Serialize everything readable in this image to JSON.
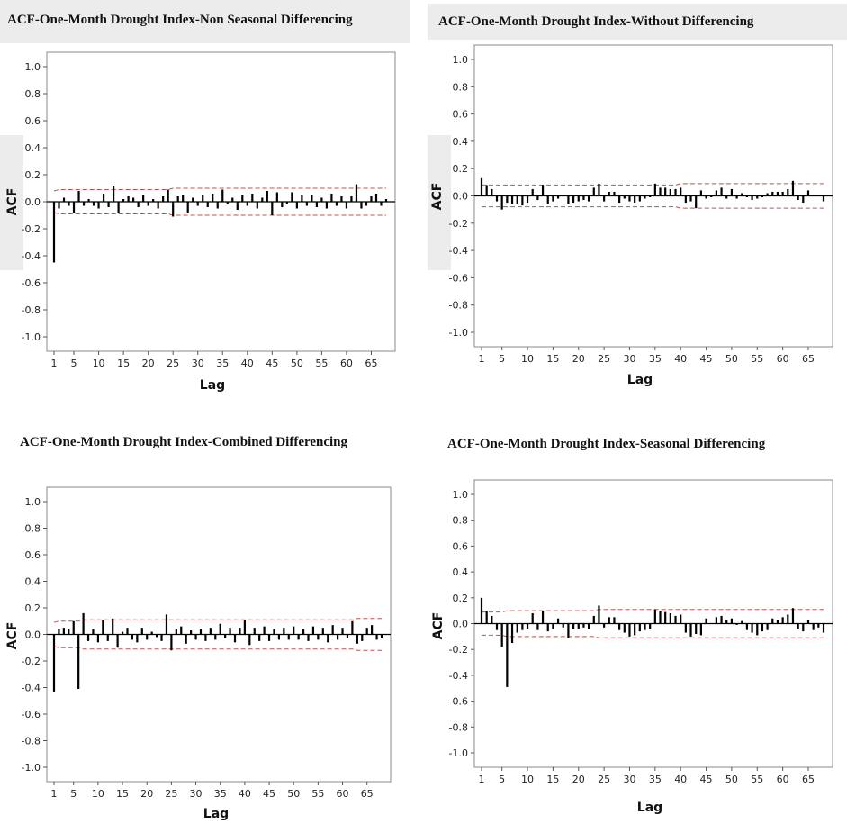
{
  "charts": [
    {
      "title": "ACF-One-Month Drought Index-Non Seasonal Differencing",
      "chart_data": {
        "type": "bar",
        "title": "ACF-One-Month Drought Index-Non Seasonal Differencing",
        "xlabel": "Lag",
        "ylabel": "ACF",
        "ylim": [
          -1.0,
          1.0
        ],
        "xlim": [
          1,
          68
        ],
        "yticks": [
          "1.0",
          "0.8",
          "0.6",
          "0.4",
          "0.2",
          "0.0",
          "-0.2",
          "-0.4",
          "-0.6",
          "-0.8",
          "-1.0"
        ],
        "xticks": [
          "1",
          "5",
          "10",
          "15",
          "20",
          "25",
          "30",
          "35",
          "40",
          "45",
          "50",
          "55",
          "60",
          "65"
        ],
        "x": [
          1,
          2,
          3,
          4,
          5,
          6,
          7,
          8,
          9,
          10,
          11,
          12,
          13,
          14,
          15,
          16,
          17,
          18,
          19,
          20,
          21,
          22,
          23,
          24,
          25,
          26,
          27,
          28,
          29,
          30,
          31,
          32,
          33,
          34,
          35,
          36,
          37,
          38,
          39,
          40,
          41,
          42,
          43,
          44,
          45,
          46,
          47,
          48,
          49,
          50,
          51,
          52,
          53,
          54,
          55,
          56,
          57,
          58,
          59,
          60,
          61,
          62,
          63,
          64,
          65,
          66,
          67,
          68
        ],
        "values": [
          -0.45,
          -0.05,
          0.03,
          -0.03,
          -0.08,
          0.08,
          -0.03,
          0.02,
          -0.03,
          -0.05,
          0.06,
          -0.04,
          0.12,
          -0.08,
          0.02,
          0.04,
          0.03,
          -0.04,
          0.05,
          -0.03,
          0.02,
          -0.05,
          0.04,
          0.09,
          -0.11,
          0.04,
          0.05,
          -0.08,
          0.03,
          -0.03,
          0.05,
          -0.04,
          0.06,
          -0.05,
          0.09,
          -0.02,
          0.03,
          -0.06,
          0.05,
          -0.03,
          0.06,
          -0.05,
          0.03,
          0.08,
          -0.1,
          0.07,
          -0.04,
          -0.02,
          0.07,
          -0.05,
          0.05,
          -0.03,
          0.05,
          -0.04,
          0.03,
          -0.05,
          0.06,
          -0.03,
          0.04,
          -0.05,
          0.04,
          0.13,
          -0.05,
          -0.03,
          0.04,
          0.06,
          -0.03,
          0.02
        ],
        "conf_upper": [
          0.08,
          0.09,
          0.09,
          0.09,
          0.09,
          0.09,
          0.09,
          0.09,
          0.09,
          0.09,
          0.09,
          0.09,
          0.09,
          0.09,
          0.09,
          0.09,
          0.09,
          0.09,
          0.09,
          0.09,
          0.09,
          0.09,
          0.09,
          0.09,
          0.1,
          0.1,
          0.1,
          0.1,
          0.1,
          0.1,
          0.1,
          0.1,
          0.1,
          0.1,
          0.1,
          0.1,
          0.1,
          0.1,
          0.1,
          0.1,
          0.1,
          0.1,
          0.1,
          0.1,
          0.1,
          0.1,
          0.1,
          0.1,
          0.1,
          0.1,
          0.1,
          0.1,
          0.1,
          0.1,
          0.1,
          0.1,
          0.1,
          0.1,
          0.1,
          0.1,
          0.1,
          0.1,
          0.1,
          0.1,
          0.1,
          0.1,
          0.1,
          0.1
        ],
        "bar_color": "#000000",
        "conf_color": "#c0504d"
      }
    },
    {
      "title": "ACF-One-Month Drought Index-Without Differencing",
      "chart_data": {
        "type": "bar",
        "title": "ACF-One-Month Drought Index-Without Differencing",
        "xlabel": "Lag",
        "ylabel": "ACF",
        "ylim": [
          -1.0,
          1.0
        ],
        "xlim": [
          1,
          68
        ],
        "yticks": [
          "1.0",
          "0.8",
          "0.6",
          "0.4",
          "0.2",
          "0.0",
          "-0.2",
          "-0.4",
          "-0.6",
          "-0.8",
          "-1.0"
        ],
        "xticks": [
          "1",
          "5",
          "10",
          "15",
          "20",
          "25",
          "30",
          "35",
          "40",
          "45",
          "50",
          "55",
          "60",
          "65"
        ],
        "x": [
          1,
          2,
          3,
          4,
          5,
          6,
          7,
          8,
          9,
          10,
          11,
          12,
          13,
          14,
          15,
          16,
          17,
          18,
          19,
          20,
          21,
          22,
          23,
          24,
          25,
          26,
          27,
          28,
          29,
          30,
          31,
          32,
          33,
          34,
          35,
          36,
          37,
          38,
          39,
          40,
          41,
          42,
          43,
          44,
          45,
          46,
          47,
          48,
          49,
          50,
          51,
          52,
          53,
          54,
          55,
          56,
          57,
          58,
          59,
          60,
          61,
          62,
          63,
          64,
          65,
          66,
          67,
          68
        ],
        "values": [
          0.13,
          0.08,
          0.05,
          -0.04,
          -0.1,
          -0.05,
          -0.06,
          -0.06,
          -0.07,
          -0.05,
          0.05,
          -0.03,
          0.08,
          -0.06,
          -0.04,
          -0.02,
          0.0,
          -0.06,
          -0.05,
          -0.04,
          -0.03,
          -0.04,
          0.06,
          0.09,
          -0.04,
          0.03,
          0.03,
          -0.05,
          -0.02,
          -0.04,
          -0.05,
          -0.04,
          -0.02,
          -0.01,
          0.09,
          0.06,
          0.06,
          0.05,
          0.05,
          0.06,
          -0.05,
          -0.04,
          -0.09,
          0.04,
          -0.02,
          -0.01,
          0.04,
          0.06,
          -0.02,
          0.05,
          -0.02,
          0.02,
          -0.01,
          -0.03,
          -0.02,
          -0.01,
          0.02,
          0.03,
          0.03,
          0.03,
          0.05,
          0.11,
          -0.03,
          -0.05,
          0.04,
          0.0,
          0.0,
          -0.04
        ],
        "conf_upper": [
          0.08,
          0.08,
          0.08,
          0.08,
          0.08,
          0.08,
          0.08,
          0.08,
          0.08,
          0.08,
          0.08,
          0.08,
          0.08,
          0.08,
          0.08,
          0.08,
          0.08,
          0.08,
          0.08,
          0.08,
          0.08,
          0.08,
          0.08,
          0.08,
          0.08,
          0.08,
          0.08,
          0.08,
          0.08,
          0.08,
          0.08,
          0.08,
          0.08,
          0.08,
          0.08,
          0.08,
          0.08,
          0.08,
          0.08,
          0.09,
          0.09,
          0.09,
          0.09,
          0.09,
          0.09,
          0.09,
          0.09,
          0.09,
          0.09,
          0.09,
          0.09,
          0.09,
          0.09,
          0.09,
          0.09,
          0.09,
          0.09,
          0.09,
          0.09,
          0.09,
          0.09,
          0.09,
          0.09,
          0.09,
          0.09,
          0.09,
          0.09,
          0.09
        ],
        "bar_color": "#000000",
        "conf_color": "#c0504d"
      }
    },
    {
      "title": "ACF-One-Month Drought Index-Combined Differencing",
      "chart_data": {
        "type": "bar",
        "title": "ACF-One-Month Drought Index-Combined Differencing",
        "xlabel": "Lag",
        "ylabel": "ACF",
        "ylim": [
          -1.0,
          1.0
        ],
        "xlim": [
          1,
          68
        ],
        "yticks": [
          "1.0",
          "0.8",
          "0.6",
          "0.4",
          "0.2",
          "0.0",
          "-0.2",
          "-0.4",
          "-0.6",
          "-0.8",
          "-1.0"
        ],
        "xticks": [
          "1",
          "5",
          "10",
          "15",
          "20",
          "25",
          "30",
          "35",
          "40",
          "45",
          "50",
          "55",
          "60",
          "65"
        ],
        "x": [
          1,
          2,
          3,
          4,
          5,
          6,
          7,
          8,
          9,
          10,
          11,
          12,
          13,
          14,
          15,
          16,
          17,
          18,
          19,
          20,
          21,
          22,
          23,
          24,
          25,
          26,
          27,
          28,
          29,
          30,
          31,
          32,
          33,
          34,
          35,
          36,
          37,
          38,
          39,
          40,
          41,
          42,
          43,
          44,
          45,
          46,
          47,
          48,
          49,
          50,
          51,
          52,
          53,
          54,
          55,
          56,
          57,
          58,
          59,
          60,
          61,
          62,
          63,
          64,
          65,
          66,
          67,
          68
        ],
        "values": [
          -0.43,
          0.04,
          0.05,
          0.04,
          0.1,
          -0.41,
          0.16,
          -0.05,
          0.04,
          -0.06,
          0.11,
          -0.05,
          0.12,
          -0.1,
          0.02,
          0.05,
          -0.04,
          -0.06,
          0.05,
          -0.04,
          0.02,
          -0.02,
          -0.05,
          0.15,
          -0.12,
          0.04,
          0.06,
          -0.07,
          0.03,
          -0.04,
          0.04,
          -0.05,
          0.05,
          -0.04,
          0.08,
          -0.03,
          0.05,
          -0.06,
          0.05,
          0.11,
          -0.08,
          0.05,
          -0.05,
          0.06,
          -0.05,
          0.04,
          -0.04,
          0.05,
          -0.04,
          0.06,
          -0.04,
          0.04,
          -0.05,
          0.06,
          -0.04,
          0.05,
          -0.06,
          0.07,
          -0.04,
          0.05,
          -0.03,
          0.1,
          -0.07,
          -0.05,
          0.05,
          0.07,
          -0.04,
          -0.03
        ],
        "conf_upper": [
          0.09,
          0.1,
          0.1,
          0.1,
          0.1,
          0.1,
          0.11,
          0.11,
          0.11,
          0.11,
          0.11,
          0.11,
          0.11,
          0.11,
          0.11,
          0.11,
          0.11,
          0.11,
          0.11,
          0.11,
          0.11,
          0.11,
          0.11,
          0.11,
          0.11,
          0.11,
          0.11,
          0.11,
          0.11,
          0.11,
          0.11,
          0.11,
          0.11,
          0.11,
          0.11,
          0.11,
          0.11,
          0.11,
          0.11,
          0.11,
          0.11,
          0.11,
          0.11,
          0.11,
          0.11,
          0.11,
          0.11,
          0.11,
          0.11,
          0.11,
          0.11,
          0.11,
          0.11,
          0.11,
          0.11,
          0.11,
          0.11,
          0.11,
          0.11,
          0.11,
          0.11,
          0.11,
          0.12,
          0.12,
          0.12,
          0.12,
          0.12,
          0.12
        ],
        "bar_color": "#000000",
        "conf_color": "#c0504d"
      }
    },
    {
      "title": "ACF-One-Month Drought Index-Seasonal Differencing",
      "chart_data": {
        "type": "bar",
        "title": "ACF-One-Month Drought Index-Seasonal Differencing",
        "xlabel": "Lag",
        "ylabel": "ACF",
        "ylim": [
          -1.0,
          1.0
        ],
        "xlim": [
          1,
          68
        ],
        "yticks": [
          "1.0",
          "0.8",
          "0.6",
          "0.4",
          "0.2",
          "0.0",
          "-0.2",
          "-0.4",
          "-0.6",
          "-0.8",
          "-1.0"
        ],
        "xticks": [
          "1",
          "5",
          "10",
          "15",
          "20",
          "25",
          "30",
          "35",
          "40",
          "45",
          "50",
          "55",
          "60",
          "65"
        ],
        "x": [
          1,
          2,
          3,
          4,
          5,
          6,
          7,
          8,
          9,
          10,
          11,
          12,
          13,
          14,
          15,
          16,
          17,
          18,
          19,
          20,
          21,
          22,
          23,
          24,
          25,
          26,
          27,
          28,
          29,
          30,
          31,
          32,
          33,
          34,
          35,
          36,
          37,
          38,
          39,
          40,
          41,
          42,
          43,
          44,
          45,
          46,
          47,
          48,
          49,
          50,
          51,
          52,
          53,
          54,
          55,
          56,
          57,
          58,
          59,
          60,
          61,
          62,
          63,
          64,
          65,
          66,
          67,
          68
        ],
        "values": [
          0.2,
          0.1,
          0.06,
          -0.05,
          -0.18,
          -0.49,
          -0.15,
          -0.07,
          -0.05,
          -0.04,
          0.08,
          -0.05,
          0.1,
          -0.06,
          -0.04,
          0.04,
          -0.03,
          -0.11,
          -0.04,
          -0.04,
          -0.03,
          -0.04,
          0.06,
          0.14,
          -0.03,
          0.05,
          0.05,
          -0.05,
          -0.07,
          -0.1,
          -0.09,
          -0.06,
          -0.05,
          -0.04,
          0.11,
          0.1,
          0.09,
          0.08,
          0.06,
          0.07,
          -0.07,
          -0.1,
          -0.08,
          -0.09,
          0.04,
          0.0,
          0.05,
          0.06,
          0.03,
          0.04,
          -0.01,
          0.02,
          -0.05,
          -0.07,
          -0.09,
          -0.06,
          -0.05,
          0.04,
          0.03,
          0.05,
          0.07,
          0.12,
          -0.04,
          -0.06,
          0.03,
          -0.05,
          -0.03,
          -0.07
        ],
        "conf_upper": [
          0.09,
          0.09,
          0.09,
          0.09,
          0.09,
          0.1,
          0.1,
          0.1,
          0.1,
          0.1,
          0.1,
          0.1,
          0.1,
          0.1,
          0.1,
          0.1,
          0.1,
          0.1,
          0.1,
          0.1,
          0.1,
          0.1,
          0.1,
          0.11,
          0.11,
          0.11,
          0.11,
          0.11,
          0.11,
          0.11,
          0.11,
          0.11,
          0.11,
          0.11,
          0.11,
          0.11,
          0.11,
          0.11,
          0.11,
          0.11,
          0.11,
          0.11,
          0.11,
          0.11,
          0.11,
          0.11,
          0.11,
          0.11,
          0.11,
          0.11,
          0.11,
          0.11,
          0.11,
          0.11,
          0.11,
          0.11,
          0.11,
          0.11,
          0.11,
          0.11,
          0.11,
          0.11,
          0.11,
          0.11,
          0.11,
          0.11,
          0.11,
          0.11
        ],
        "bar_color": "#000000",
        "conf_color": "#c0504d"
      }
    }
  ]
}
